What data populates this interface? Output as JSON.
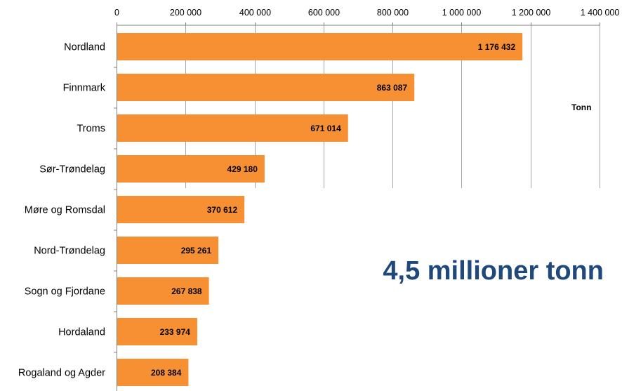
{
  "chart_data": {
    "type": "bar",
    "orientation": "horizontal",
    "categories": [
      "Nordland",
      "Finnmark",
      "Troms",
      "Sør-Trøndelag",
      "Møre og Romsdal",
      "Nord-Trøndelag",
      "Sogn og Fjordane",
      "Hordaland",
      "Rogaland og Agder"
    ],
    "values": [
      1176432,
      863087,
      671014,
      429180,
      370612,
      295261,
      267838,
      233974,
      208384
    ],
    "value_labels": [
      "1 176 432",
      "863 087",
      "671 014",
      "429 180",
      "370 612",
      "295 261",
      "267 838",
      "233 974",
      "208 384"
    ],
    "xlim": [
      0,
      1400000
    ],
    "x_ticks": [
      0,
      200000,
      400000,
      600000,
      800000,
      1000000,
      1200000,
      1400000
    ],
    "x_tick_labels": [
      "0",
      "200 000",
      "400 000",
      "600 000",
      "800 000",
      "1 000 000",
      "1 200 000",
      "1 400 000"
    ],
    "axis_position": "top",
    "grid": true,
    "unit_label": "Tonn",
    "bar_color": "#f79033",
    "grid_color": "#a6a6a6"
  },
  "headline": "4,5 millioner tonn"
}
